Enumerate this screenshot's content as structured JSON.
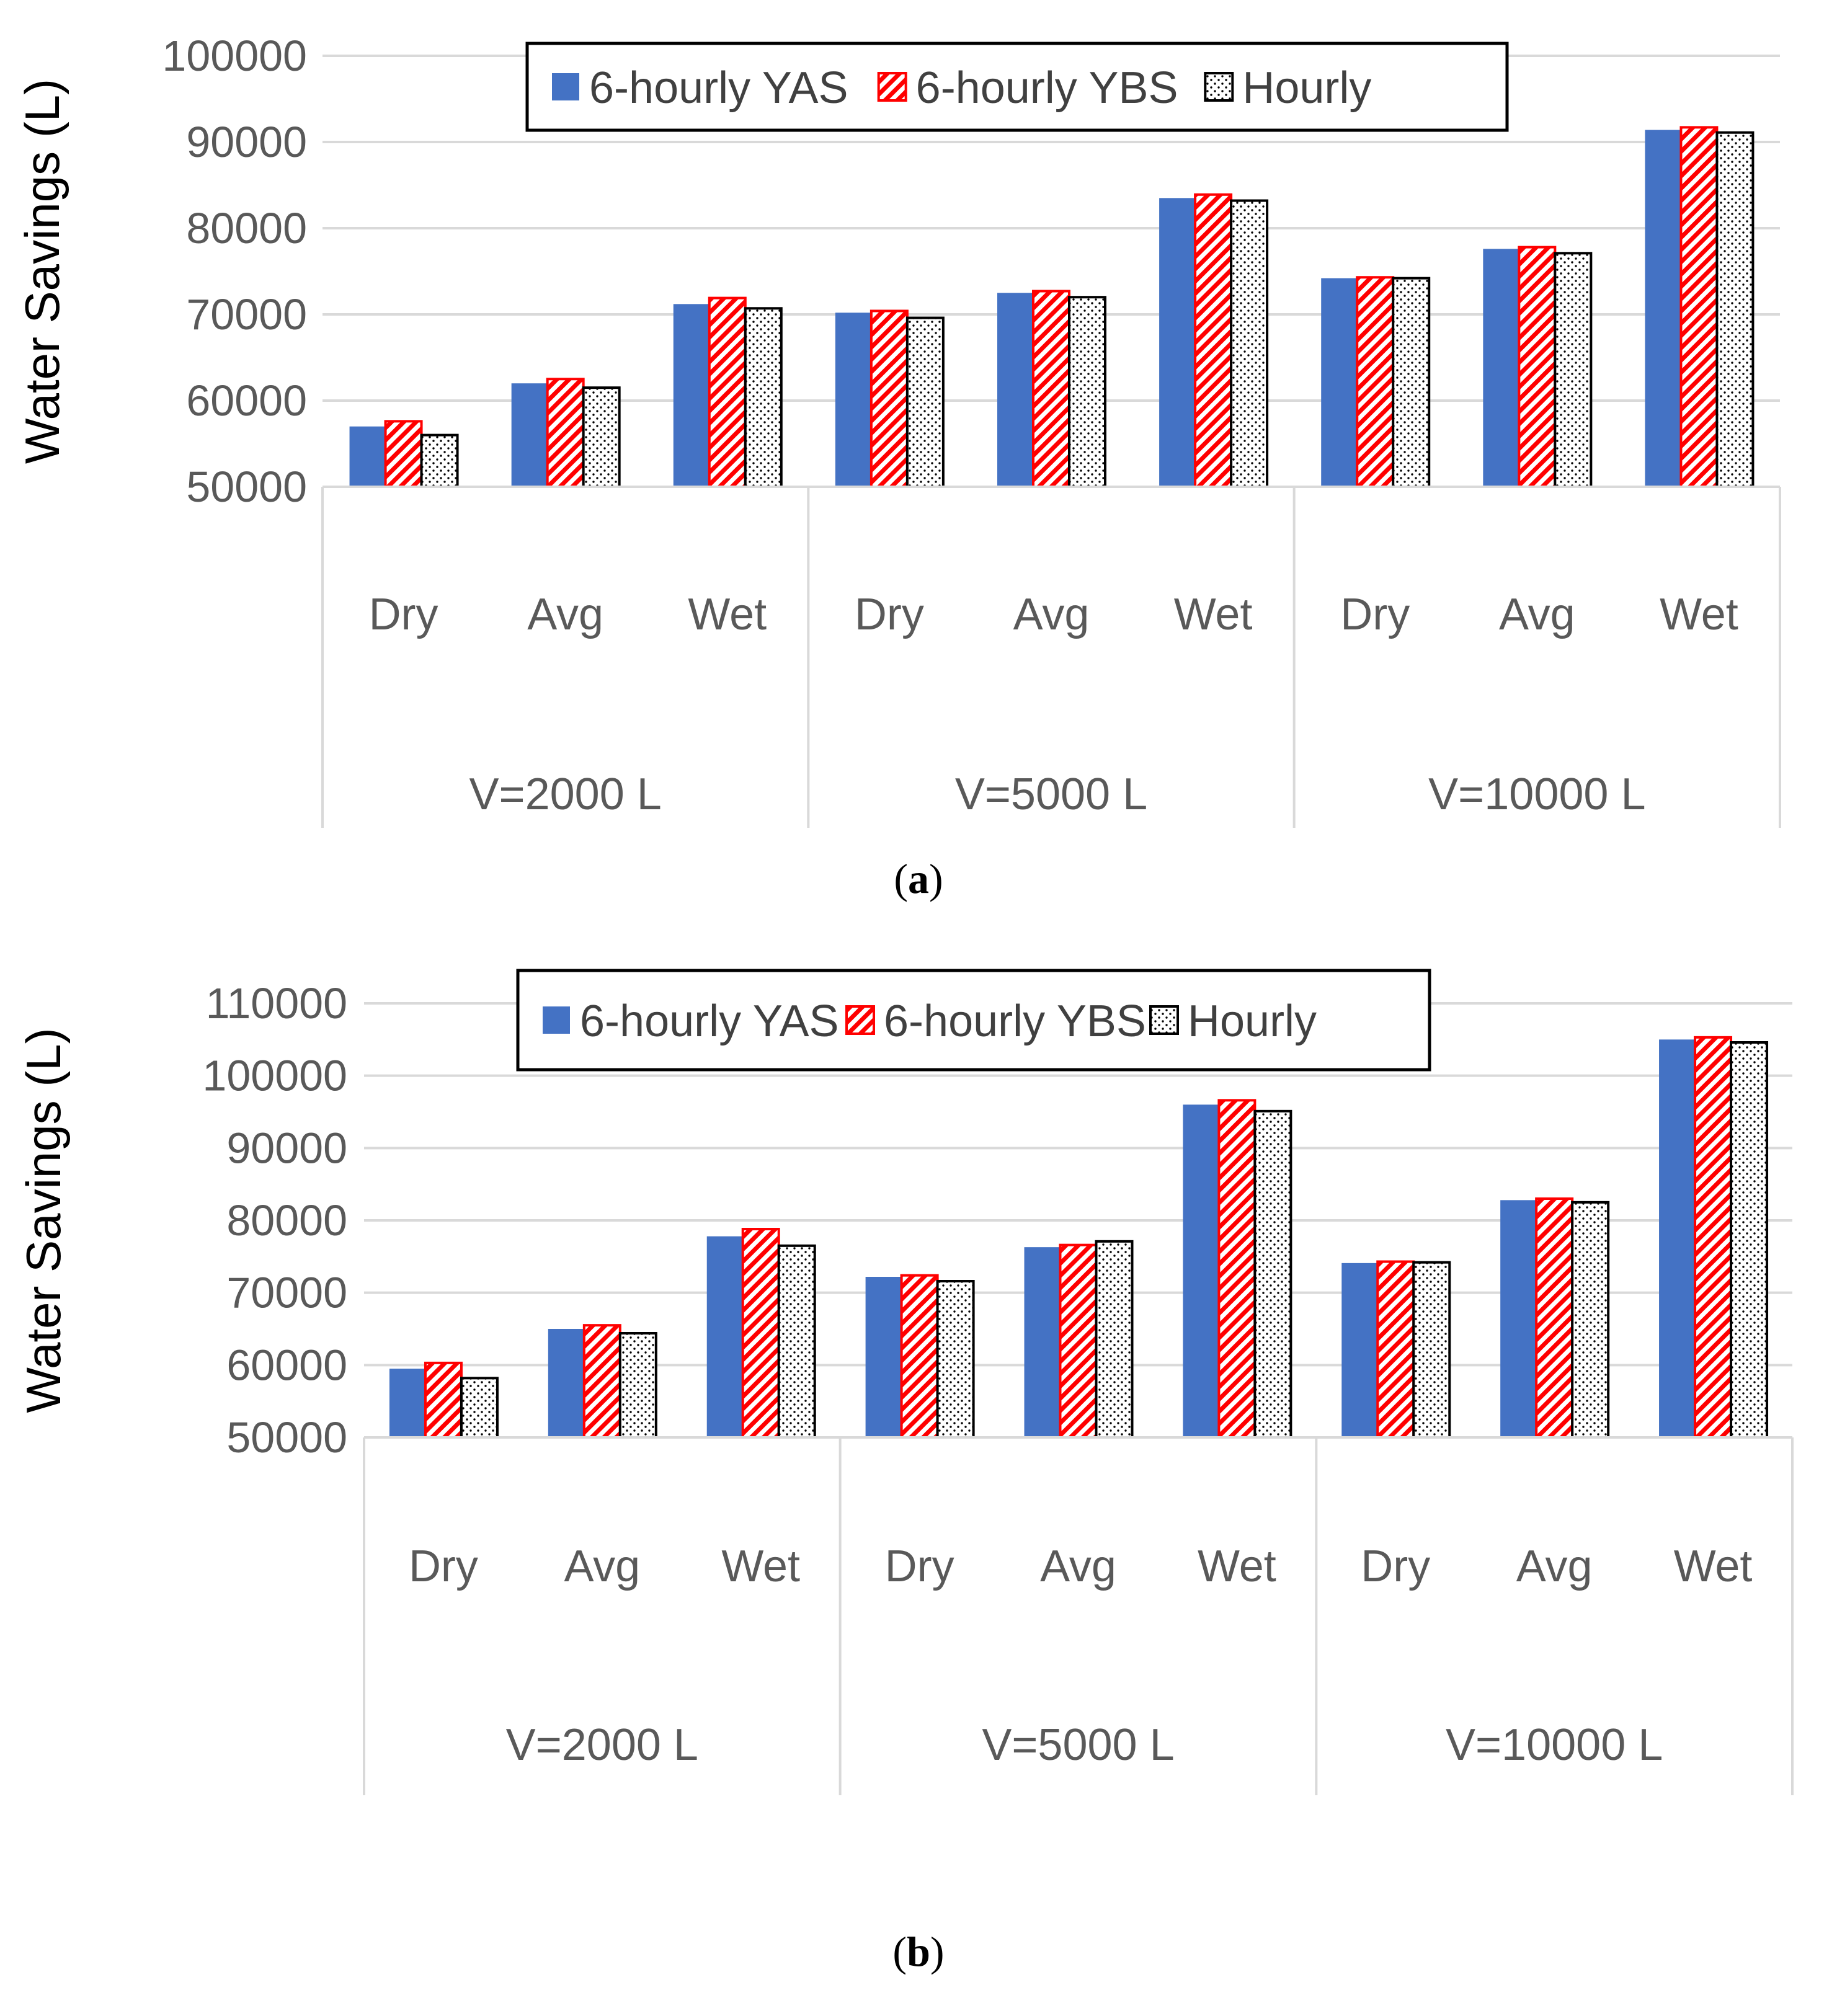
{
  "colors": {
    "yas": "#4472C4",
    "ybs": "#FF0000",
    "hourly": "#000000",
    "gridline": "#D9D9D9",
    "text": "#595959"
  },
  "legend": {
    "entries": [
      {
        "name": "6-hourly YAS",
        "pattern": "solid"
      },
      {
        "name": "6-hourly YBS",
        "pattern": "diagonal-hatch"
      },
      {
        "name": "Hourly",
        "pattern": "dots"
      }
    ]
  },
  "chart_data": [
    {
      "type": "bar",
      "caption": "(a)",
      "caption_letter": "a",
      "ylabel": "Water Savings (L)",
      "ylim": [
        50000,
        100000
      ],
      "yticks": [
        "100000",
        "90000",
        "80000",
        "70000",
        "60000",
        "50000"
      ],
      "ytick_values": [
        100000,
        90000,
        80000,
        70000,
        60000,
        50000
      ],
      "groups": [
        "V=2000 L",
        "V=5000 L",
        "V=10000 L"
      ],
      "categories": [
        "Dry",
        "Avg",
        "Wet",
        "Dry",
        "Avg",
        "Wet",
        "Dry",
        "Avg",
        "Wet"
      ],
      "series": [
        {
          "name": "6-hourly YAS",
          "values": [
            57000,
            62000,
            71200,
            70200,
            72500,
            83500,
            74200,
            77600,
            91400
          ]
        },
        {
          "name": "6-hourly YBS",
          "values": [
            57600,
            62500,
            71900,
            70400,
            72700,
            83900,
            74300,
            77800,
            91700
          ]
        },
        {
          "name": "Hourly",
          "values": [
            56000,
            61500,
            70700,
            69600,
            72000,
            83200,
            74200,
            77100,
            91100
          ]
        }
      ]
    },
    {
      "type": "bar",
      "caption": "(b)",
      "caption_letter": "b",
      "ylabel": "Water Savings (L)",
      "ylim": [
        50000,
        110000
      ],
      "yticks": [
        "110000",
        "100000",
        "90000",
        "80000",
        "70000",
        "60000",
        "50000"
      ],
      "ytick_values": [
        110000,
        100000,
        90000,
        80000,
        70000,
        60000,
        50000
      ],
      "groups": [
        "V=2000 L",
        "V=5000 L",
        "V=10000 L"
      ],
      "categories": [
        "Dry",
        "Avg",
        "Wet",
        "Dry",
        "Avg",
        "Wet",
        "Dry",
        "Avg",
        "Wet"
      ],
      "series": [
        {
          "name": "6-hourly YAS",
          "values": [
            59500,
            65000,
            77800,
            72200,
            76300,
            96000,
            74100,
            82800,
            105000
          ]
        },
        {
          "name": "6-hourly YBS",
          "values": [
            60300,
            65500,
            78800,
            72400,
            76600,
            96600,
            74300,
            83000,
            105300
          ]
        },
        {
          "name": "Hourly",
          "values": [
            58200,
            64400,
            76500,
            71600,
            77100,
            95100,
            74200,
            82500,
            104600
          ]
        }
      ]
    }
  ]
}
